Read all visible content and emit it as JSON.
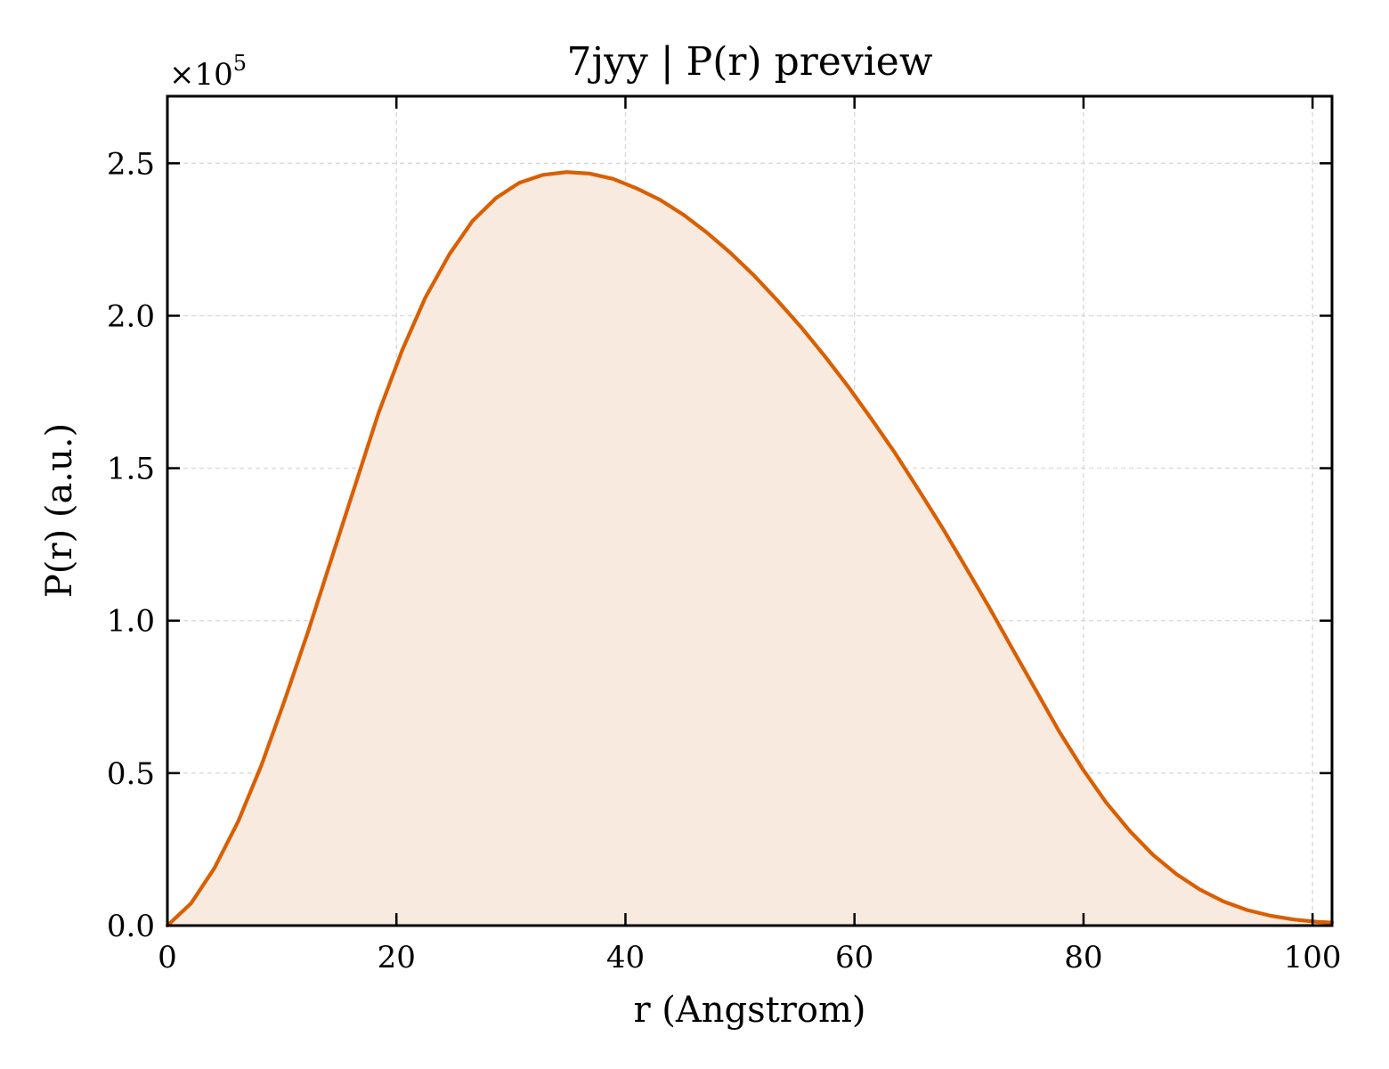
{
  "chart_data": {
    "type": "area",
    "title": "7jyy | P(r) preview",
    "xlabel": "r (Angstrom)",
    "ylabel": "P(r) (a.u.)",
    "y_multiplier_label": "×10",
    "y_multiplier_exponent": "5",
    "xlim": [
      0,
      101.7
    ],
    "ylim": [
      0,
      2.72
    ],
    "x_ticks": [
      0,
      20,
      40,
      60,
      80,
      100
    ],
    "x_tick_labels": [
      "0",
      "20",
      "40",
      "60",
      "80",
      "100"
    ],
    "y_ticks": [
      0,
      0.5,
      1.0,
      1.5,
      2.0,
      2.5
    ],
    "y_tick_labels": [
      "0.0",
      "0.5",
      "1.0",
      "1.5",
      "2.0",
      "2.5"
    ],
    "grid": true,
    "colors": {
      "line": "#d95f02",
      "fill": "#f9eadf",
      "grid": "#d9d9d9"
    },
    "series": [
      {
        "x": [
          0,
          2.07,
          4.1,
          6.17,
          8.2,
          10.23,
          12.3,
          14.33,
          16.4,
          18.43,
          20.5,
          22.53,
          24.6,
          26.63,
          28.7,
          30.73,
          32.8,
          34.83,
          36.9,
          38.93,
          40.97,
          43.03,
          45.07,
          47.13,
          49.17,
          51.23,
          53.27,
          55.33,
          57.37,
          59.44,
          61.47,
          63.54,
          65.57,
          67.64,
          69.67,
          71.74,
          73.77,
          75.84,
          77.87,
          79.94,
          81.97,
          84.04,
          86.07,
          88.14,
          90.17,
          92.24,
          94.27,
          96.34,
          98.37,
          100.44,
          101.7
        ],
        "y": [
          0.0,
          0.073,
          0.188,
          0.341,
          0.525,
          0.738,
          0.966,
          1.203,
          1.444,
          1.68,
          1.887,
          2.06,
          2.2,
          2.31,
          2.386,
          2.436,
          2.462,
          2.471,
          2.466,
          2.449,
          2.418,
          2.38,
          2.331,
          2.272,
          2.206,
          2.132,
          2.05,
          1.963,
          1.869,
          1.768,
          1.662,
          1.55,
          1.431,
          1.307,
          1.178,
          1.045,
          0.909,
          0.772,
          0.637,
          0.513,
          0.404,
          0.31,
          0.232,
          0.168,
          0.118,
          0.079,
          0.051,
          0.032,
          0.02,
          0.012,
          0.01
        ]
      }
    ]
  }
}
